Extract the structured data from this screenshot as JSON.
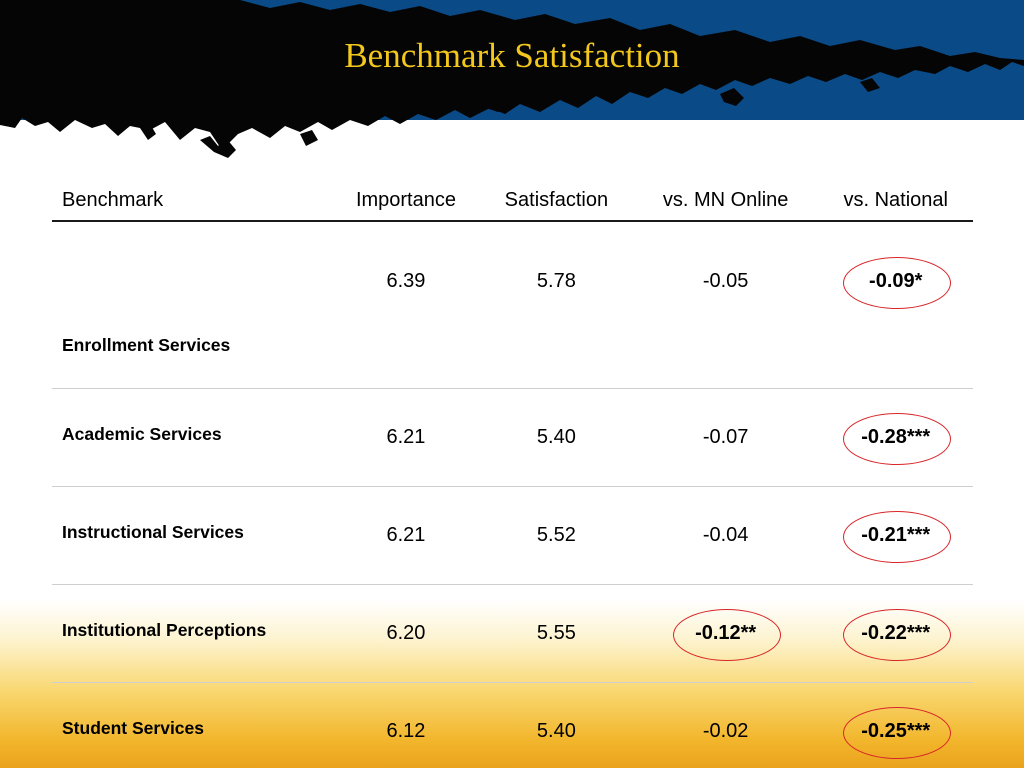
{
  "title": "Benchmark Satisfaction",
  "headers": [
    "Benchmark",
    "Importance",
    "Satisfaction",
    "vs. MN Online",
    "vs. National"
  ],
  "rows": [
    {
      "benchmark": "Enrollment Services",
      "importance": "6.39",
      "satisfaction": "5.78",
      "vs_mn_online": "-0.05",
      "vs_national": "-0.09*"
    },
    {
      "benchmark": "Academic Services",
      "importance": "6.21",
      "satisfaction": "5.40",
      "vs_mn_online": "-0.07",
      "vs_national": "-0.28***"
    },
    {
      "benchmark": "Instructional Services",
      "importance": "6.21",
      "satisfaction": "5.52",
      "vs_mn_online": "-0.04",
      "vs_national": "-0.21***"
    },
    {
      "benchmark": "Institutional Perceptions",
      "importance": "6.20",
      "satisfaction": "5.55",
      "vs_mn_online": "-0.12**",
      "vs_national": "-0.22***"
    },
    {
      "benchmark": "Student Services",
      "importance": "6.12",
      "satisfaction": "5.40",
      "vs_mn_online": "-0.02",
      "vs_national": "-0.25***"
    }
  ],
  "highlighted_cells": [
    {
      "row": 0,
      "column": "vs_national"
    },
    {
      "row": 1,
      "column": "vs_national"
    },
    {
      "row": 2,
      "column": "vs_national"
    },
    {
      "row": 3,
      "column": "vs_mn_online"
    },
    {
      "row": 3,
      "column": "vs_national"
    },
    {
      "row": 4,
      "column": "vs_national"
    }
  ],
  "colors": {
    "banner_blue": "#0a4a86",
    "banner_black": "#050505",
    "title_gold": "#f3c71c",
    "highlight_circle": "#d8262a",
    "bottom_gold": "#eaa21c"
  }
}
